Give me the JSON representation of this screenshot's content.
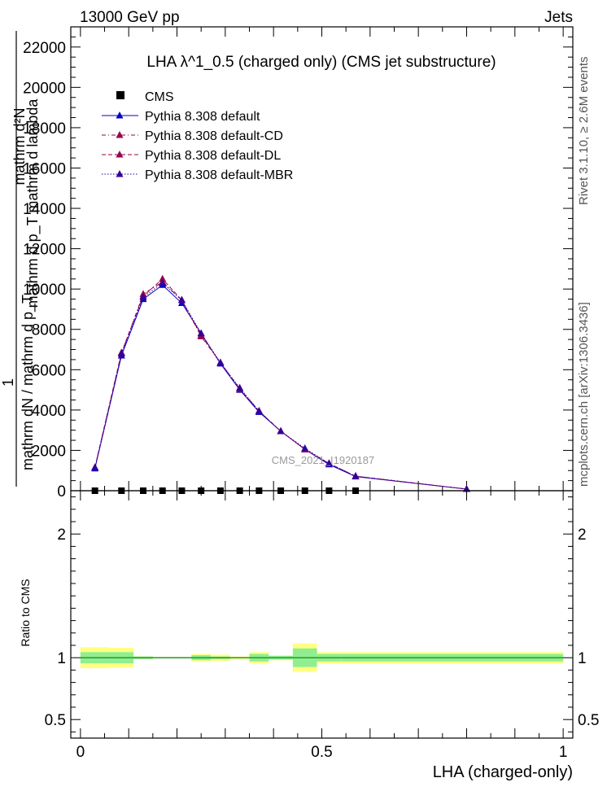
{
  "header": {
    "left": "13000 GeV pp",
    "right": "Jets"
  },
  "side_labels": {
    "rivet": "Rivet 3.1.10, ≥ 2.6M events",
    "mcplots": "mcplots.cern.ch [arXiv:1306.3436]"
  },
  "watermark": "CMS_2021_I1920187",
  "chart_data": [
    {
      "type": "line",
      "title": "LHA λ^1_0.5 (charged only) (CMS jet substructure)",
      "ylabel": {
        "line1": "mathrm d²N",
        "line2": "mathrm d p_T mathrm d lambda",
        "line3": "1",
        "line4": "mathrm dN / mathrm d p_T"
      },
      "ylim": [
        0,
        23000
      ],
      "yticks": [
        0,
        2000,
        4000,
        6000,
        8000,
        10000,
        12000,
        14000,
        16000,
        18000,
        20000,
        22000
      ],
      "ytick_labels": [
        "0",
        "2000",
        "4000",
        "6000",
        "8000",
        "10000",
        "12000",
        "14000",
        "16000",
        "18000",
        "20000",
        "22000"
      ],
      "xlim": [
        -0.02,
        1.02
      ],
      "legend_position": "top-left",
      "series": [
        {
          "name": "CMS",
          "style": "markers",
          "color": "#000000",
          "x": [
            0.03,
            0.085,
            0.13,
            0.17,
            0.21,
            0.25,
            0.29,
            0.33,
            0.37,
            0.415,
            0.465,
            0.515,
            0.57
          ],
          "values": [
            0,
            0,
            0,
            0,
            0,
            0,
            0,
            0,
            0,
            0,
            0,
            0,
            0
          ]
        },
        {
          "name": "Pythia 8.308 default",
          "style": "solid",
          "color": "#0000cc",
          "x": [
            0.03,
            0.085,
            0.13,
            0.17,
            0.21,
            0.25,
            0.29,
            0.33,
            0.37,
            0.415,
            0.465,
            0.515,
            0.57,
            0.8
          ],
          "values": [
            1100,
            6700,
            9500,
            10200,
            9300,
            7800,
            6300,
            5000,
            3900,
            2950,
            2050,
            1300,
            700,
            80
          ]
        },
        {
          "name": "Pythia 8.308 default-CD",
          "style": "dashdot",
          "color": "#99004d",
          "x": [
            0.03,
            0.085,
            0.13,
            0.17,
            0.21,
            0.25,
            0.29,
            0.33,
            0.37,
            0.415,
            0.465,
            0.515,
            0.57,
            0.8
          ],
          "values": [
            1150,
            6800,
            9750,
            10350,
            9450,
            7650,
            6350,
            5050,
            3950,
            2950,
            2050,
            1350,
            720,
            80
          ]
        },
        {
          "name": "Pythia 8.308 default-DL",
          "style": "dashed",
          "color": "#99004d",
          "x": [
            0.03,
            0.085,
            0.13,
            0.17,
            0.21,
            0.25,
            0.29,
            0.33,
            0.37,
            0.415,
            0.465,
            0.515,
            0.57,
            0.8
          ],
          "values": [
            1150,
            6850,
            9650,
            10500,
            9450,
            7700,
            6350,
            5050,
            3950,
            2950,
            2050,
            1350,
            720,
            80
          ]
        },
        {
          "name": "Pythia 8.308 default-MBR",
          "style": "dotted",
          "color": "#330099",
          "x": [
            0.03,
            0.085,
            0.13,
            0.17,
            0.21,
            0.25,
            0.29,
            0.33,
            0.37,
            0.415,
            0.465,
            0.515,
            0.57,
            0.8
          ],
          "values": [
            1150,
            6800,
            9600,
            10300,
            9450,
            7800,
            6350,
            5100,
            3950,
            2950,
            2100,
            1350,
            720,
            80
          ]
        }
      ]
    },
    {
      "type": "line",
      "ylabel": "Ratio to CMS",
      "xlabel": "LHA (charged-only)",
      "ylim": [
        0.35,
        2.35
      ],
      "yticks": [
        0.5,
        1,
        2
      ],
      "ytick_labels": [
        "0.5",
        "1",
        "2"
      ],
      "xlim": [
        -0.02,
        1.02
      ],
      "xticks": [
        0,
        0.5,
        1
      ],
      "xtick_labels": [
        "0",
        "0.5",
        "1"
      ],
      "bin_edges": [
        0,
        0.06,
        0.11,
        0.15,
        0.19,
        0.23,
        0.27,
        0.31,
        0.35,
        0.39,
        0.44,
        0.49,
        0.54,
        1.0
      ],
      "band_stat_low": [
        0.955,
        0.955,
        0.99,
        0.995,
        0.995,
        0.98,
        0.99,
        0.995,
        0.97,
        0.985,
        0.925,
        0.97,
        0.97
      ],
      "band_stat_high": [
        1.045,
        1.045,
        1.01,
        1.005,
        1.005,
        1.02,
        1.01,
        1.005,
        1.03,
        1.015,
        1.075,
        1.03,
        1.03
      ],
      "band_total_low": [
        0.915,
        0.92,
        0.99,
        0.995,
        0.995,
        0.97,
        0.975,
        0.99,
        0.955,
        0.98,
        0.885,
        0.955,
        0.955
      ],
      "band_total_high": [
        1.085,
        1.08,
        1.01,
        1.005,
        1.005,
        1.03,
        1.025,
        1.01,
        1.045,
        1.02,
        1.115,
        1.045,
        1.045
      ],
      "ratio_line": 1.0,
      "colors": {
        "stat_band": "#90ee90",
        "total_band": "#ffff80",
        "ratio_line": "#008000"
      }
    }
  ]
}
